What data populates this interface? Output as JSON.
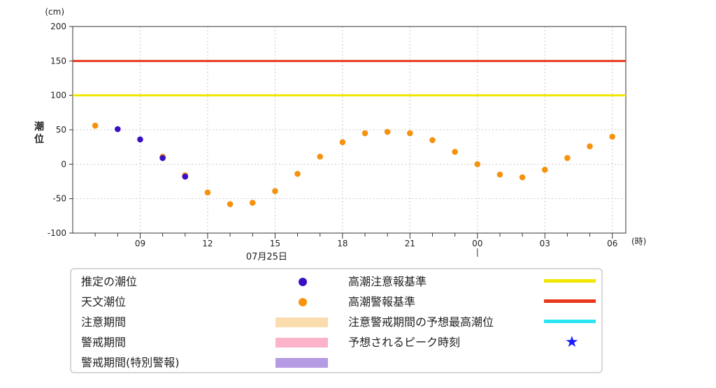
{
  "chart_data": {
    "type": "scatter",
    "ylabel": "潮位",
    "y_unit": "(cm)",
    "x_unit": "(時)",
    "date_label": "07月25日",
    "ylim": [
      -100,
      200
    ],
    "y_ticks": [
      "200",
      "150",
      "100",
      "50",
      "0",
      "-50",
      "-100"
    ],
    "x_ticks": [
      "09",
      "12",
      "15",
      "18",
      "21",
      "00",
      "03",
      "06"
    ],
    "grid": true,
    "reference_lines": [
      {
        "name": "高潮注意報基準",
        "value": 100,
        "color": "#f2e600"
      },
      {
        "name": "高潮警報基準",
        "value": 150,
        "color": "#e8381c"
      }
    ],
    "series": [
      {
        "name": "推定の潮位",
        "color": "#3a0fc4",
        "points": [
          [
            8,
            51
          ],
          [
            9,
            36
          ],
          [
            10,
            9
          ],
          [
            11,
            -18
          ]
        ]
      },
      {
        "name": "天文潮位",
        "color": "#f5930f",
        "points": [
          [
            7,
            56
          ],
          [
            10,
            11
          ],
          [
            11,
            -16
          ],
          [
            12,
            -41
          ],
          [
            13,
            -58
          ],
          [
            14,
            -56
          ],
          [
            15,
            -39
          ],
          [
            16,
            -14
          ],
          [
            17,
            11
          ],
          [
            18,
            32
          ],
          [
            19,
            45
          ],
          [
            20,
            47
          ],
          [
            21,
            45
          ],
          [
            22,
            35
          ],
          [
            23,
            18
          ],
          [
            24,
            0
          ],
          [
            25,
            -15
          ],
          [
            26,
            -19
          ],
          [
            27,
            -8
          ],
          [
            28,
            9
          ],
          [
            29,
            26
          ],
          [
            30,
            40
          ]
        ]
      }
    ]
  },
  "legend": {
    "estimated": {
      "label": "推定の潮位",
      "color": "#3a0fc4"
    },
    "astronomical": {
      "label": "天文潮位",
      "color": "#f5930f"
    },
    "caution_period": {
      "label": "注意期間",
      "color": "#fbdcae"
    },
    "warning_period": {
      "label": "警戒期間",
      "color": "#fbb3c9"
    },
    "special_warning_period": {
      "label": "警戒期間(特別警報)",
      "color": "#b59be3"
    },
    "advisory_criterion": {
      "label": "高潮注意報基準",
      "color": "#f2e600"
    },
    "warning_criterion": {
      "label": "高潮警報基準",
      "color": "#e8381c"
    },
    "predicted_max": {
      "label": "注意警戒期間の予想最高潮位",
      "color": "#29e5f2"
    },
    "peak_time": {
      "label": "予想されるピーク時刻",
      "icon": "star-icon",
      "color": "#1a1aff"
    }
  }
}
